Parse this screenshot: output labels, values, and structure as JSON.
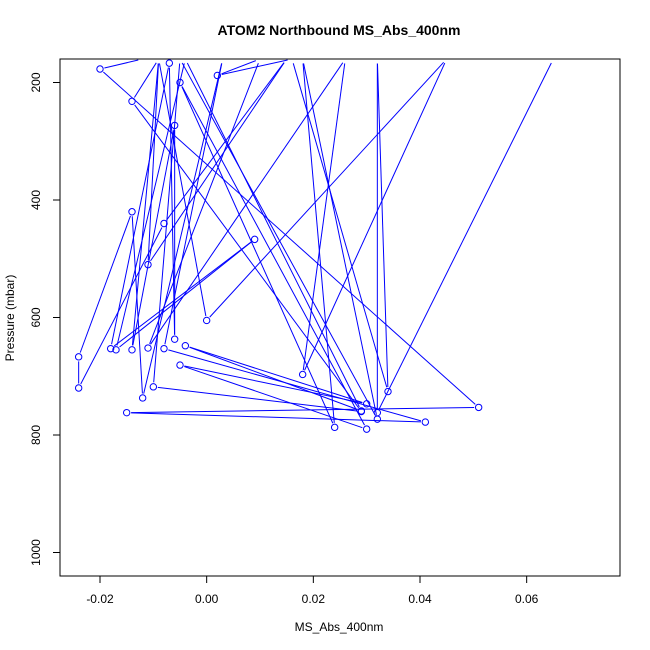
{
  "chart_data": {
    "type": "line",
    "title": "ATOM2 Northbound MS_Abs_400nm",
    "xlabel": "MS_Abs_400nm",
    "ylabel": "Pressure (mbar)",
    "xlim": [
      -0.0275,
      0.0775
    ],
    "ylim": [
      1040,
      160
    ],
    "y_inverted": true,
    "x_ticks": [
      -0.02,
      0.0,
      0.02,
      0.04,
      0.06
    ],
    "x_tick_labels": [
      "-0.02",
      "0.00",
      "0.02",
      "0.04",
      "0.06"
    ],
    "y_ticks": [
      200,
      400,
      600,
      800,
      1000
    ],
    "y_tick_labels": [
      "200",
      "400",
      "600",
      "800",
      "1000"
    ],
    "grid": false,
    "series_color": "#0000ff",
    "marker": "open-circle",
    "series": [
      {
        "points": [
          [
            -0.012,
            160
          ],
          [
            -0.02,
            177
          ],
          [
            0.051,
            753
          ],
          [
            -0.015,
            762
          ],
          [
            0.041,
            778
          ],
          [
            -0.008,
            653
          ],
          [
            0.003,
            160
          ],
          [
            -0.012,
            737
          ],
          [
            -0.014,
            420
          ],
          [
            -0.024,
            667
          ],
          [
            -0.024,
            720
          ],
          [
            -0.008,
            440
          ],
          [
            0.015,
            160
          ],
          [
            -0.011,
            510
          ],
          [
            -0.009,
            160
          ],
          [
            -0.014,
            655
          ],
          [
            -0.006,
            273
          ],
          [
            -0.006,
            637
          ],
          [
            -0.007,
            167
          ],
          [
            -0.018,
            653
          ],
          [
            0.009,
            467
          ],
          [
            -0.017,
            655
          ],
          [
            -0.004,
            160
          ],
          [
            0.029,
            759
          ],
          [
            -0.004,
            648
          ],
          [
            0.03,
            747
          ],
          [
            -0.005,
            681
          ],
          [
            0.03,
            790
          ],
          [
            -0.005,
            200
          ],
          [
            0.024,
            787
          ],
          [
            0.018,
            160
          ],
          [
            0.032,
            773
          ],
          [
            -0.005,
            160
          ],
          [
            -0.01,
            718
          ],
          [
            0.029,
            760
          ],
          [
            -0.014,
            232
          ],
          [
            -0.009,
            160
          ],
          [
            0.0,
            605
          ],
          [
            0.045,
            160
          ],
          [
            0.018,
            697
          ],
          [
            0.026,
            160
          ],
          [
            -0.011,
            652
          ],
          [
            0.01,
            160
          ],
          [
            0.002,
            188
          ],
          [
            0.016,
            160
          ],
          [
            0.034,
            726
          ],
          [
            0.032,
            160
          ],
          [
            0.032,
            762
          ],
          [
            0.065,
            160
          ]
        ]
      }
    ]
  }
}
